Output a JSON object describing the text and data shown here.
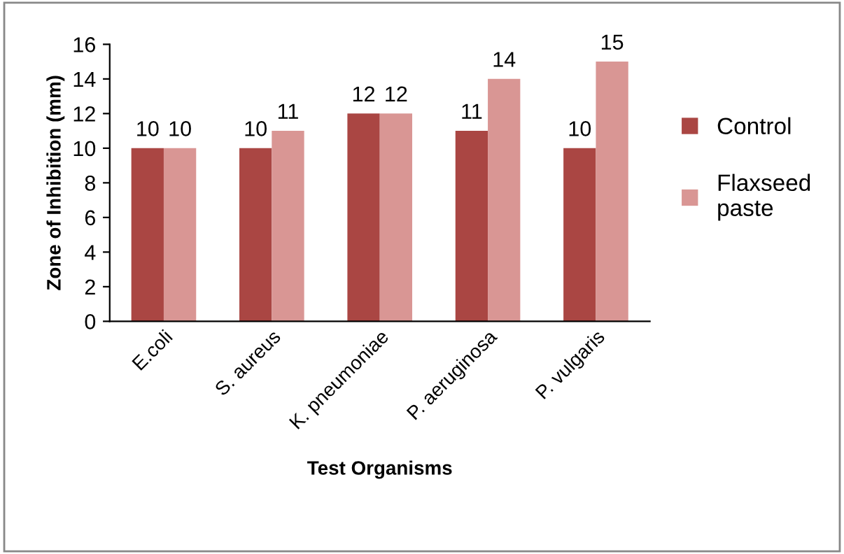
{
  "chart_data": {
    "type": "bar",
    "xlabel": "Test Organisms",
    "ylabel": "Zone of Inhibition (mm)",
    "categories": [
      "E.coli",
      "S. aureus",
      "K. pneumoniae",
      "P. aeruginosa",
      "P. vulgaris"
    ],
    "series": [
      {
        "name": "Control",
        "color": "#aa4643",
        "values": [
          10,
          10,
          12,
          11,
          10
        ]
      },
      {
        "name": "Flaxseed\npaste",
        "color": "#d99694",
        "values": [
          10,
          11,
          12,
          14,
          15
        ]
      }
    ],
    "ylim": [
      0,
      16
    ],
    "yticks": [
      0,
      2,
      4,
      6,
      8,
      10,
      12,
      14,
      16
    ],
    "grid": false,
    "legend": "right",
    "data_labels": true
  }
}
